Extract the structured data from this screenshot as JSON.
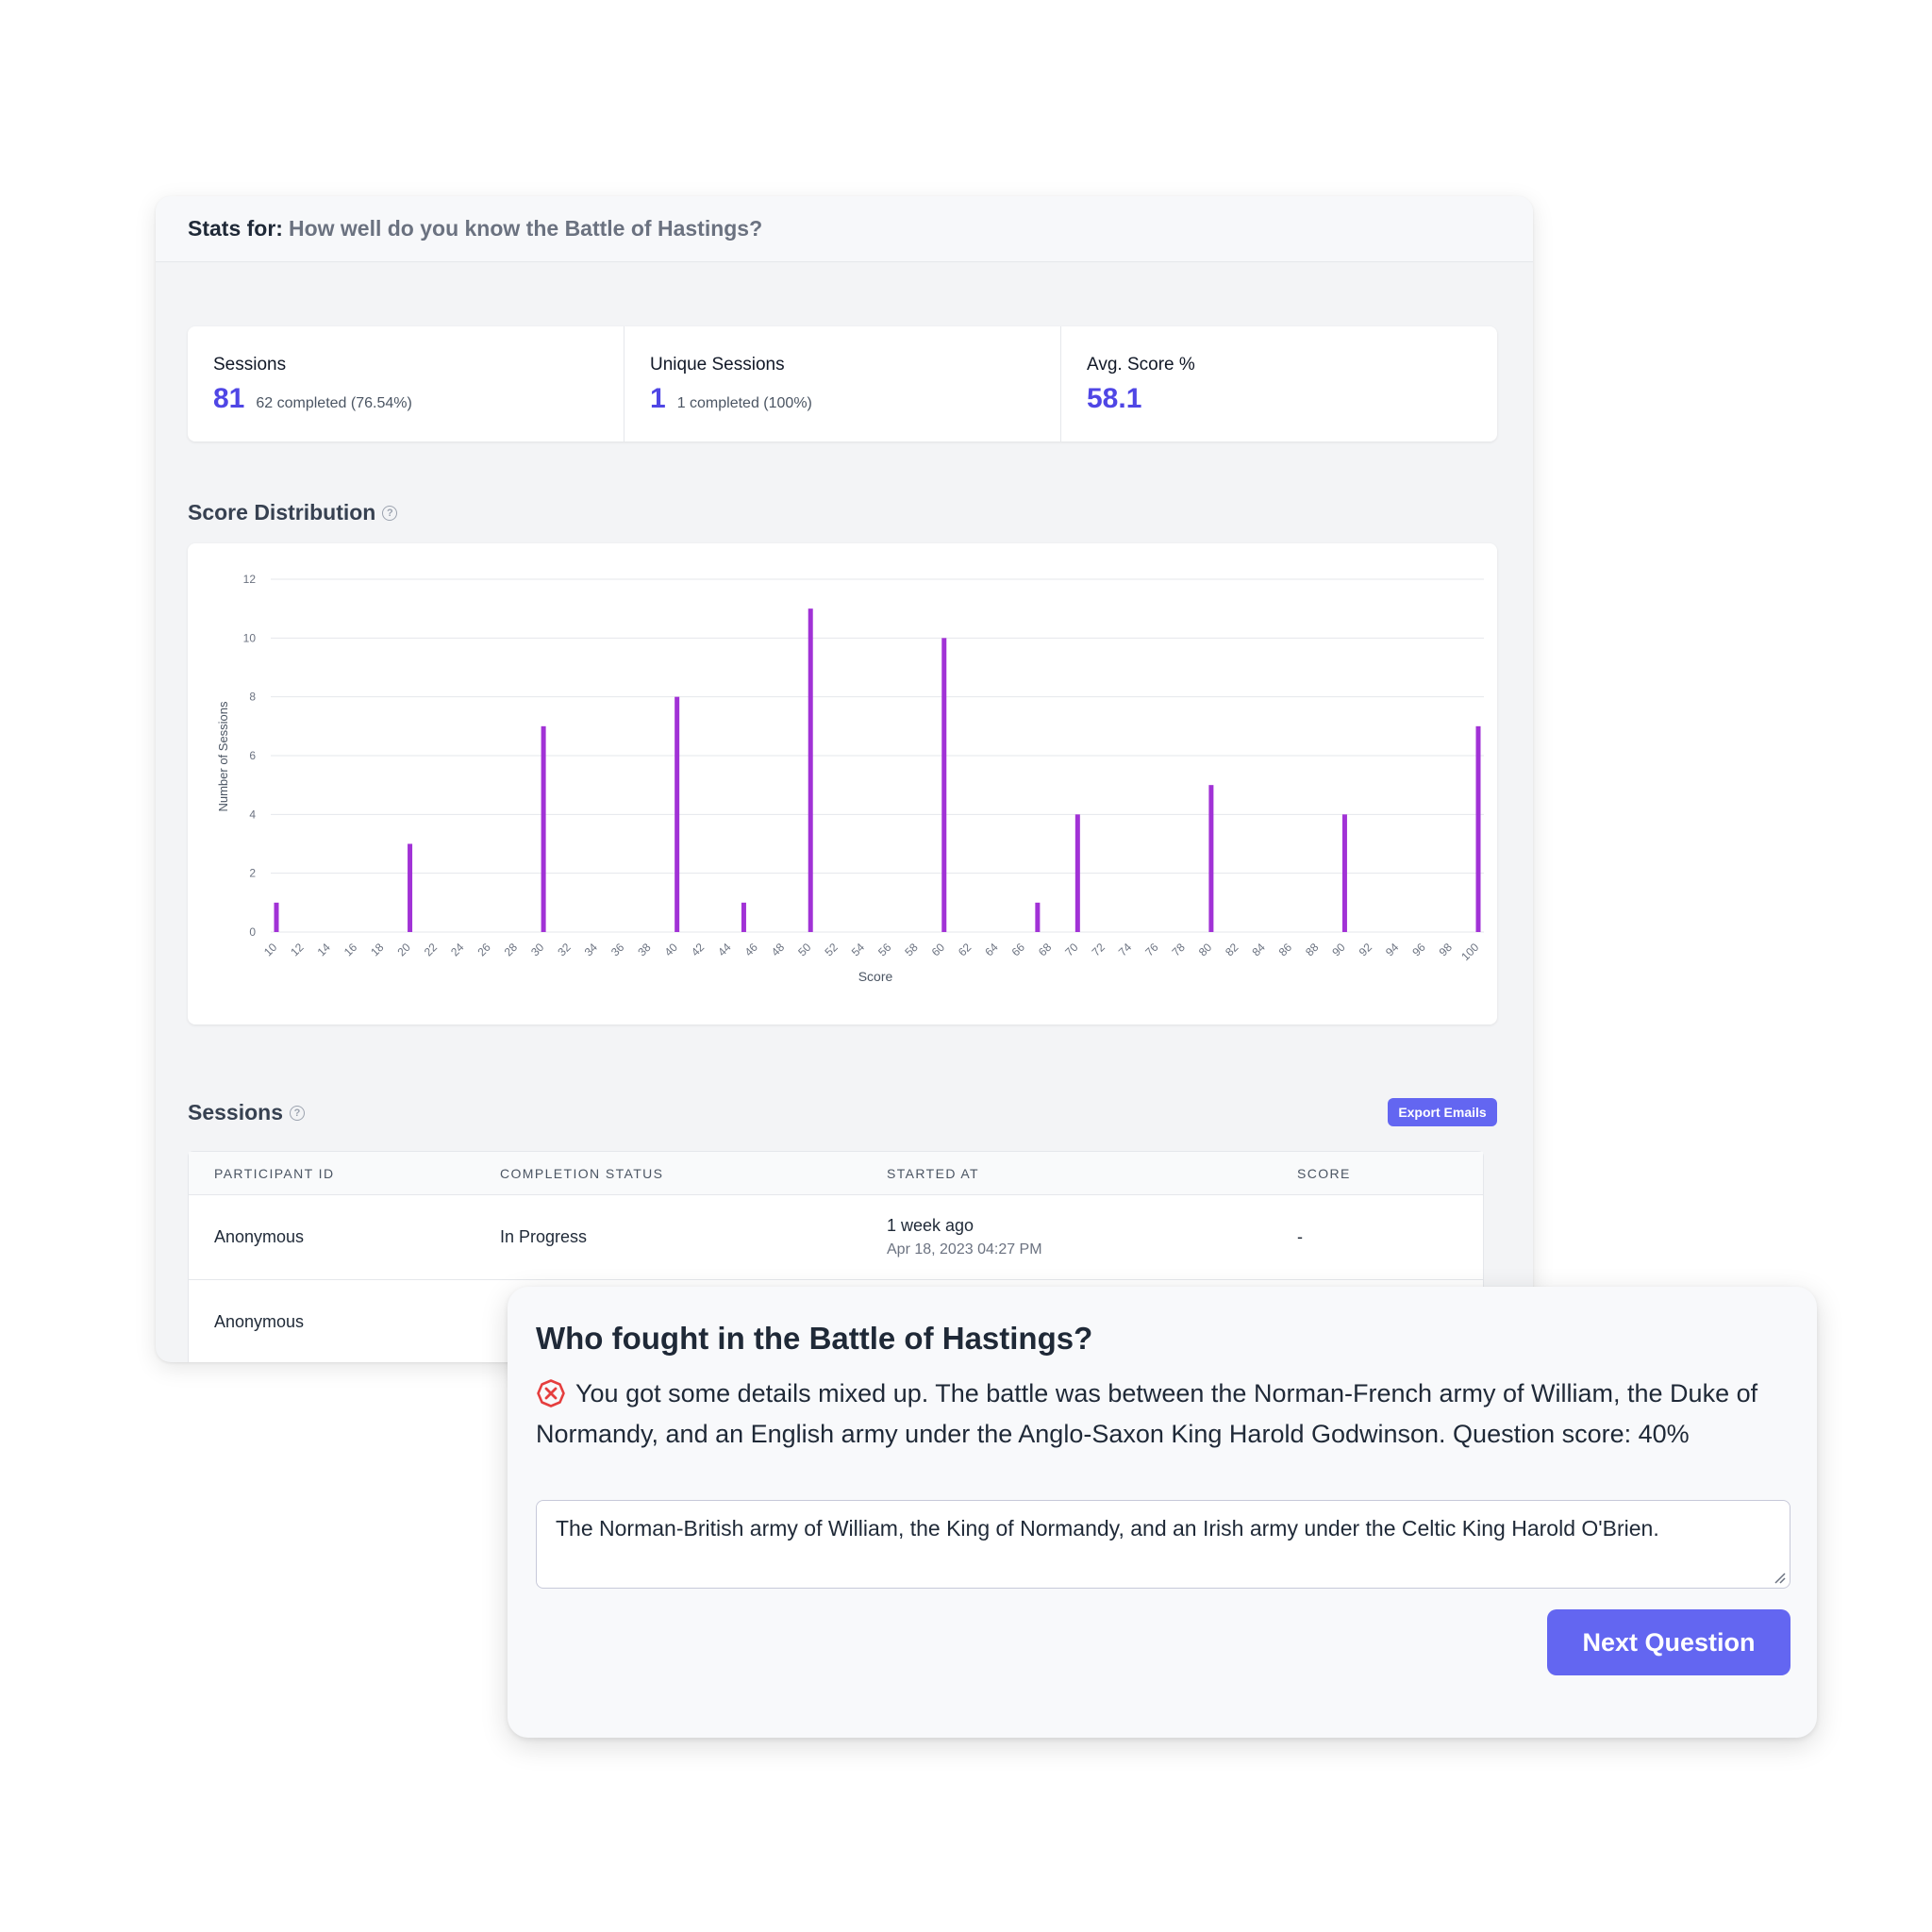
{
  "stats": {
    "header_label": "Stats for:",
    "quiz_title": "How well do you know the Battle of Hastings?",
    "cards": [
      {
        "label": "Sessions",
        "value": "81",
        "detail": "62 completed (76.54%)"
      },
      {
        "label": "Unique Sessions",
        "value": "1",
        "detail": "1 completed (100%)"
      },
      {
        "label": "Avg. Score %",
        "value": "58.1",
        "detail": ""
      }
    ],
    "distribution_title": "Score Distribution",
    "sessions_title": "Sessions",
    "help_glyph": "?",
    "export_label": "Export Emails",
    "table": {
      "columns": [
        "PARTICIPANT ID",
        "COMPLETION STATUS",
        "STARTED AT",
        "SCORE"
      ],
      "rows": [
        {
          "participant": "Anonymous",
          "status": "In Progress",
          "started_relative": "1 week ago",
          "started_absolute": "Apr 18, 2023 04:27 PM",
          "score": "-"
        },
        {
          "participant": "Anonymous",
          "status": "",
          "started_relative": "",
          "started_absolute": "",
          "score": ""
        }
      ]
    }
  },
  "chart_data": {
    "type": "bar",
    "xlabel": "Score",
    "ylabel": "Number of Sessions",
    "ylim": [
      0,
      12
    ],
    "yticks": [
      0,
      2,
      4,
      6,
      8,
      10,
      12
    ],
    "grid": true,
    "color": "#a132d6",
    "categories": [
      10,
      12,
      14,
      16,
      18,
      20,
      22,
      24,
      26,
      28,
      30,
      32,
      34,
      36,
      38,
      40,
      42,
      44,
      46,
      48,
      50,
      52,
      54,
      56,
      58,
      60,
      62,
      64,
      66,
      68,
      70,
      72,
      74,
      76,
      78,
      80,
      82,
      84,
      86,
      88,
      90,
      92,
      94,
      96,
      98,
      100
    ],
    "bars": [
      {
        "x": 10,
        "y": 1
      },
      {
        "x": 20,
        "y": 3
      },
      {
        "x": 30,
        "y": 7
      },
      {
        "x": 40,
        "y": 8
      },
      {
        "x": 45,
        "y": 1
      },
      {
        "x": 50,
        "y": 11
      },
      {
        "x": 60,
        "y": 10
      },
      {
        "x": 67,
        "y": 1
      },
      {
        "x": 70,
        "y": 4
      },
      {
        "x": 80,
        "y": 5
      },
      {
        "x": 90,
        "y": 4
      },
      {
        "x": 100,
        "y": 7
      }
    ]
  },
  "question": {
    "title": "Who fought in the Battle of Hastings?",
    "feedback_icon": "x-circle-icon",
    "feedback_text": "You got some details mixed up. The battle was between the Norman-French army of William, the Duke of Normandy, and an English army under the Anglo-Saxon King Harold Godwinson. Question score: 40%",
    "answer_value": "The Norman-British army of William, the King of Normandy, and an Irish army under the Celtic King Harold O'Brien.",
    "next_label": "Next Question"
  },
  "colors": {
    "accent": "#6366f1",
    "stat_value": "#4f46e5",
    "bar": "#a132d6",
    "error": "#e53e3e"
  }
}
